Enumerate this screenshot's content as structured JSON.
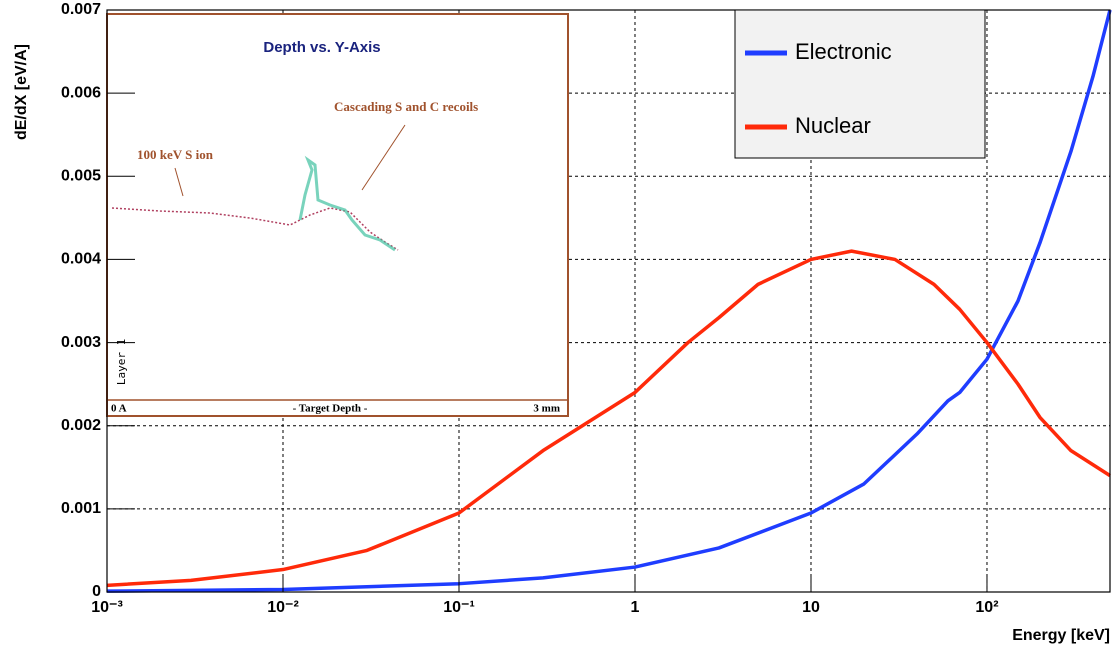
{
  "chart_data": {
    "type": "line",
    "x_label": "Energy [keV]",
    "y_label": "dE/dX [eV/A]",
    "xscale": "log",
    "xlim": [
      0.001,
      500
    ],
    "ylim": [
      0,
      0.007
    ],
    "xticks": [
      {
        "value": 0.001,
        "label": "10⁻³"
      },
      {
        "value": 0.01,
        "label": "10⁻²"
      },
      {
        "value": 0.1,
        "label": "10⁻¹"
      },
      1,
      10,
      {
        "value": 100,
        "label": "10²"
      }
    ],
    "yticks": [
      0,
      0.001,
      0.002,
      0.003,
      0.004,
      0.005,
      0.006,
      0.007
    ],
    "grid": true,
    "legend": "top-right",
    "series": [
      {
        "name": "Electronic",
        "color": "#1f3dff",
        "x": [
          0.001,
          0.01,
          0.1,
          0.3,
          1,
          3,
          10,
          20,
          40,
          60,
          70,
          100,
          150,
          200,
          300,
          400,
          500
        ],
        "values": [
          1e-05,
          3e-05,
          0.0001,
          0.00017,
          0.0003,
          0.00053,
          0.00095,
          0.0013,
          0.0019,
          0.0023,
          0.0024,
          0.0028,
          0.0035,
          0.0042,
          0.0053,
          0.0062,
          0.007
        ]
      },
      {
        "name": "Nuclear",
        "color": "#ff2a0a",
        "x": [
          0.001,
          0.003,
          0.01,
          0.03,
          0.1,
          0.3,
          1,
          2,
          3,
          5,
          10,
          17,
          30,
          50,
          70,
          100,
          150,
          200,
          300,
          500
        ],
        "values": [
          8e-05,
          0.00014,
          0.00027,
          0.0005,
          0.00095,
          0.0017,
          0.0024,
          0.003,
          0.0033,
          0.0037,
          0.004,
          0.0041,
          0.004,
          0.0037,
          0.0034,
          0.003,
          0.0025,
          0.0021,
          0.0017,
          0.0014
        ]
      }
    ],
    "inset": {
      "title": "Depth vs. Y-Axis",
      "ion_label": "100 keV S ion",
      "recoil_label": "Cascading S and C recoils",
      "layer_label": "Layer 1",
      "depth_start": "0 A",
      "depth_label": "- Target Depth -",
      "depth_end": "3 mm"
    }
  }
}
